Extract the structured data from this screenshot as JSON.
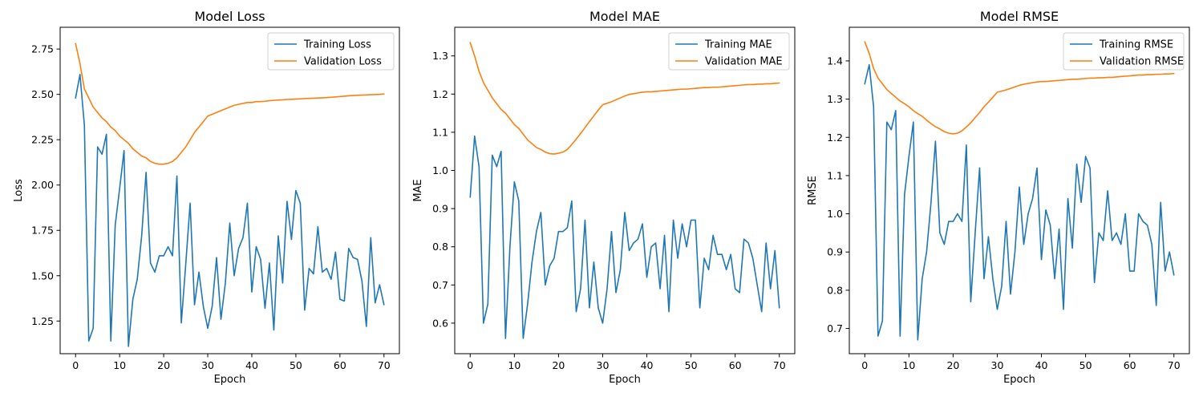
{
  "chart_data": [
    {
      "type": "line",
      "title": "Model Loss",
      "xlabel": "Epoch",
      "ylabel": "Loss",
      "xlim": [
        -3.5,
        73.5
      ],
      "ylim": [
        1.07,
        2.87
      ],
      "xticks": [
        0,
        10,
        20,
        30,
        40,
        50,
        60,
        70
      ],
      "yticks": [
        1.25,
        1.5,
        1.75,
        2.0,
        2.25,
        2.5,
        2.75
      ],
      "ytick_labels": [
        "1.25",
        "1.50",
        "1.75",
        "2.00",
        "2.25",
        "2.50",
        "2.75"
      ],
      "legend_position": "top-right",
      "series": [
        {
          "name": "Training Loss",
          "color": "#1f77b4",
          "values": [
            2.48,
            2.61,
            2.33,
            1.14,
            1.21,
            2.21,
            2.17,
            2.28,
            1.14,
            1.78,
            1.98,
            2.19,
            1.11,
            1.37,
            1.48,
            1.72,
            2.07,
            1.57,
            1.52,
            1.61,
            1.61,
            1.66,
            1.61,
            2.05,
            1.24,
            1.56,
            1.9,
            1.34,
            1.52,
            1.33,
            1.21,
            1.33,
            1.6,
            1.26,
            1.46,
            1.79,
            1.5,
            1.65,
            1.71,
            1.9,
            1.41,
            1.66,
            1.59,
            1.32,
            1.57,
            1.2,
            1.72,
            1.46,
            1.91,
            1.7,
            1.97,
            1.9,
            1.31,
            1.54,
            1.51,
            1.77,
            1.52,
            1.54,
            1.48,
            1.63,
            1.37,
            1.36,
            1.65,
            1.6,
            1.59,
            1.47,
            1.22,
            1.71,
            1.35,
            1.45,
            1.34
          ]
        },
        {
          "name": "Validation Loss",
          "color": "#ff7f0e",
          "values": [
            2.78,
            2.67,
            2.53,
            2.48,
            2.43,
            2.4,
            2.37,
            2.35,
            2.32,
            2.3,
            2.27,
            2.25,
            2.23,
            2.2,
            2.18,
            2.16,
            2.15,
            2.13,
            2.12,
            2.115,
            2.115,
            2.12,
            2.13,
            2.15,
            2.18,
            2.21,
            2.25,
            2.29,
            2.32,
            2.35,
            2.38,
            2.39,
            2.4,
            2.41,
            2.42,
            2.43,
            2.44,
            2.445,
            2.45,
            2.455,
            2.455,
            2.46,
            2.46,
            2.462,
            2.465,
            2.467,
            2.469,
            2.47,
            2.472,
            2.473,
            2.474,
            2.475,
            2.477,
            2.478,
            2.479,
            2.48,
            2.481,
            2.482,
            2.484,
            2.486,
            2.488,
            2.49,
            2.492,
            2.494,
            2.495,
            2.496,
            2.497,
            2.498,
            2.499,
            2.5,
            2.502
          ]
        }
      ]
    },
    {
      "type": "line",
      "title": "Model MAE",
      "xlabel": "Epoch",
      "ylabel": "MAE",
      "xlim": [
        -3.5,
        73.5
      ],
      "ylim": [
        0.52,
        1.375
      ],
      "xticks": [
        0,
        10,
        20,
        30,
        40,
        50,
        60,
        70
      ],
      "yticks": [
        0.6,
        0.7,
        0.8,
        0.9,
        1.0,
        1.1,
        1.2,
        1.3
      ],
      "ytick_labels": [
        "0.6",
        "0.7",
        "0.8",
        "0.9",
        "1.0",
        "1.1",
        "1.2",
        "1.3"
      ],
      "legend_position": "top-right",
      "series": [
        {
          "name": "Training MAE",
          "color": "#1f77b4",
          "values": [
            0.93,
            1.09,
            1.01,
            0.6,
            0.65,
            1.04,
            1.01,
            1.05,
            0.56,
            0.8,
            0.97,
            0.92,
            0.56,
            0.65,
            0.76,
            0.84,
            0.89,
            0.7,
            0.75,
            0.77,
            0.84,
            0.84,
            0.85,
            0.92,
            0.63,
            0.69,
            0.87,
            0.64,
            0.76,
            0.64,
            0.6,
            0.69,
            0.84,
            0.68,
            0.74,
            0.89,
            0.79,
            0.81,
            0.82,
            0.86,
            0.72,
            0.8,
            0.81,
            0.69,
            0.83,
            0.63,
            0.87,
            0.77,
            0.86,
            0.8,
            0.87,
            0.87,
            0.64,
            0.77,
            0.74,
            0.83,
            0.78,
            0.78,
            0.74,
            0.78,
            0.69,
            0.68,
            0.82,
            0.81,
            0.77,
            0.7,
            0.63,
            0.81,
            0.69,
            0.79,
            0.64
          ]
        },
        {
          "name": "Validation MAE",
          "color": "#ff7f0e",
          "values": [
            1.335,
            1.3,
            1.26,
            1.23,
            1.21,
            1.19,
            1.175,
            1.16,
            1.15,
            1.135,
            1.12,
            1.11,
            1.095,
            1.08,
            1.07,
            1.06,
            1.055,
            1.048,
            1.044,
            1.043,
            1.045,
            1.048,
            1.055,
            1.068,
            1.082,
            1.097,
            1.112,
            1.128,
            1.143,
            1.158,
            1.172,
            1.176,
            1.18,
            1.185,
            1.19,
            1.195,
            1.199,
            1.201,
            1.203,
            1.205,
            1.206,
            1.206,
            1.207,
            1.208,
            1.209,
            1.21,
            1.211,
            1.212,
            1.213,
            1.213,
            1.214,
            1.215,
            1.216,
            1.217,
            1.217,
            1.218,
            1.218,
            1.219,
            1.22,
            1.221,
            1.222,
            1.223,
            1.224,
            1.225,
            1.225,
            1.226,
            1.226,
            1.227,
            1.227,
            1.228,
            1.229
          ]
        }
      ]
    },
    {
      "type": "line",
      "title": "Model RMSE",
      "xlabel": "Epoch",
      "ylabel": "RMSE",
      "xlim": [
        -3.5,
        73.5
      ],
      "ylim": [
        0.634,
        1.488
      ],
      "xticks": [
        0,
        10,
        20,
        30,
        40,
        50,
        60,
        70
      ],
      "yticks": [
        0.7,
        0.8,
        0.9,
        1.0,
        1.1,
        1.2,
        1.3,
        1.4
      ],
      "ytick_labels": [
        "0.7",
        "0.8",
        "0.9",
        "1.0",
        "1.1",
        "1.2",
        "1.3",
        "1.4"
      ],
      "legend_position": "top-right",
      "series": [
        {
          "name": "Training RMSE",
          "color": "#1f77b4",
          "values": [
            1.34,
            1.39,
            1.28,
            0.68,
            0.72,
            1.24,
            1.22,
            1.27,
            0.68,
            1.05,
            1.15,
            1.24,
            0.67,
            0.83,
            0.9,
            1.03,
            1.19,
            0.95,
            0.92,
            0.98,
            0.98,
            1.0,
            0.98,
            1.18,
            0.77,
            0.95,
            1.12,
            0.83,
            0.94,
            0.83,
            0.75,
            0.81,
            0.98,
            0.79,
            0.9,
            1.07,
            0.92,
            1.0,
            1.04,
            1.12,
            0.88,
            1.01,
            0.97,
            0.83,
            0.96,
            0.75,
            1.04,
            0.91,
            1.13,
            1.03,
            1.15,
            1.12,
            0.82,
            0.95,
            0.93,
            1.06,
            0.93,
            0.95,
            0.92,
            1.0,
            0.85,
            0.85,
            1.0,
            0.98,
            0.97,
            0.92,
            0.76,
            1.03,
            0.85,
            0.9,
            0.84
          ]
        },
        {
          "name": "Validation RMSE",
          "color": "#ff7f0e",
          "values": [
            1.45,
            1.42,
            1.38,
            1.355,
            1.34,
            1.325,
            1.315,
            1.305,
            1.295,
            1.288,
            1.28,
            1.27,
            1.262,
            1.255,
            1.245,
            1.236,
            1.228,
            1.222,
            1.215,
            1.211,
            1.209,
            1.211,
            1.217,
            1.227,
            1.238,
            1.252,
            1.265,
            1.28,
            1.292,
            1.305,
            1.318,
            1.321,
            1.324,
            1.328,
            1.332,
            1.336,
            1.339,
            1.341,
            1.343,
            1.345,
            1.346,
            1.346,
            1.347,
            1.348,
            1.349,
            1.35,
            1.351,
            1.352,
            1.352,
            1.353,
            1.354,
            1.355,
            1.355,
            1.356,
            1.356,
            1.357,
            1.357,
            1.358,
            1.359,
            1.36,
            1.361,
            1.362,
            1.363,
            1.363,
            1.364,
            1.364,
            1.365,
            1.365,
            1.366,
            1.366,
            1.367
          ]
        }
      ]
    }
  ]
}
